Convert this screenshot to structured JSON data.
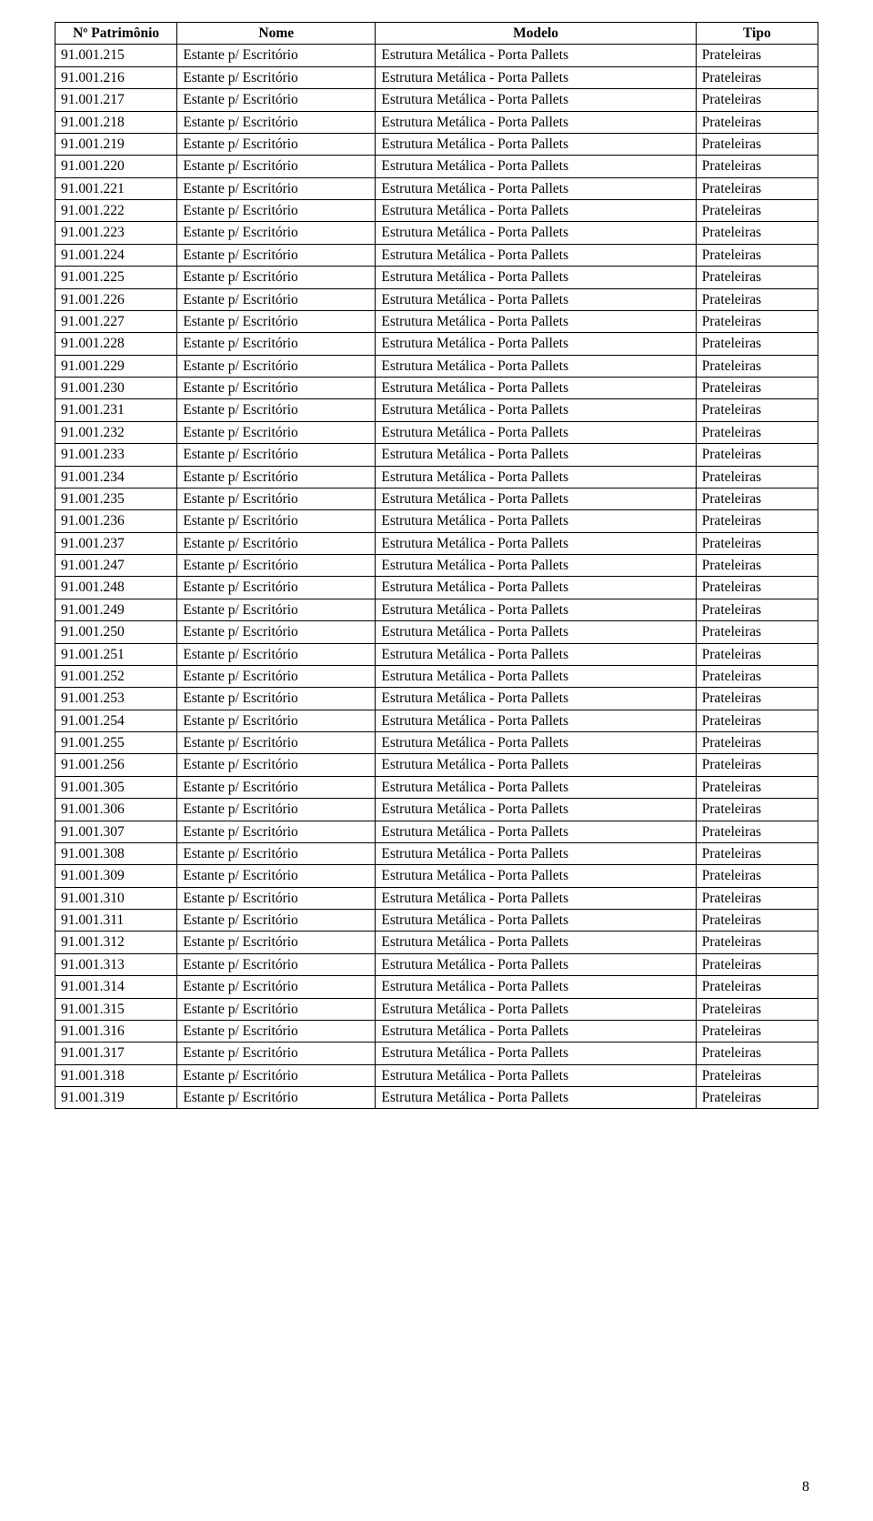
{
  "table": {
    "columns": [
      "Nº Patrimônio",
      "Nome",
      "Modelo",
      "Tipo"
    ],
    "nome": "Estante p/ Escritório",
    "modelo": "Estrutura Metálica - Porta Pallets",
    "tipo": "Prateleiras",
    "ids": [
      "91.001.215",
      "91.001.216",
      "91.001.217",
      "91.001.218",
      "91.001.219",
      "91.001.220",
      "91.001.221",
      "91.001.222",
      "91.001.223",
      "91.001.224",
      "91.001.225",
      "91.001.226",
      "91.001.227",
      "91.001.228",
      "91.001.229",
      "91.001.230",
      "91.001.231",
      "91.001.232",
      "91.001.233",
      "91.001.234",
      "91.001.235",
      "91.001.236",
      "91.001.237",
      "91.001.247",
      "91.001.248",
      "91.001.249",
      "91.001.250",
      "91.001.251",
      "91.001.252",
      "91.001.253",
      "91.001.254",
      "91.001.255",
      "91.001.256",
      "91.001.305",
      "91.001.306",
      "91.001.307",
      "91.001.308",
      "91.001.309",
      "91.001.310",
      "91.001.311",
      "91.001.312",
      "91.001.313",
      "91.001.314",
      "91.001.315",
      "91.001.316",
      "91.001.317",
      "91.001.318",
      "91.001.319"
    ],
    "border_color": "#000000",
    "background_color": "#ffffff",
    "header_fontweight": "bold",
    "font_family": "Times New Roman",
    "font_size_pt": 12,
    "col_widths_pct": [
      16,
      26,
      42,
      16
    ]
  },
  "page_number": "8"
}
